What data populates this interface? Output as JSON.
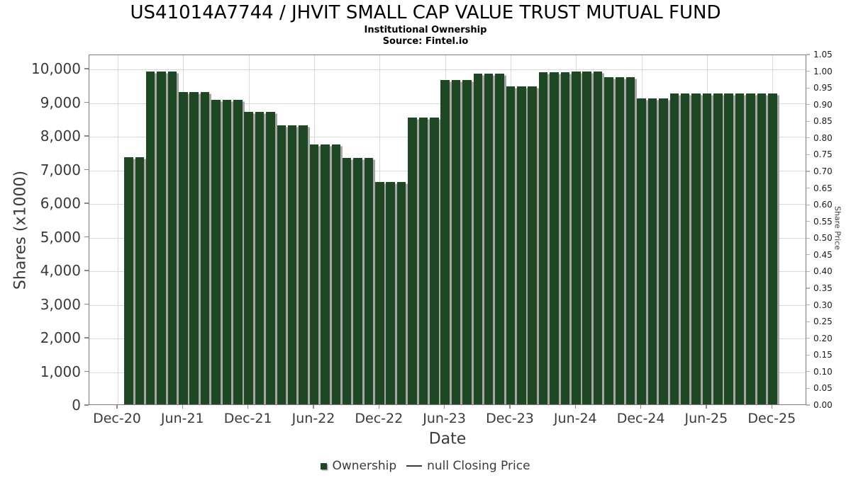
{
  "header": {
    "title": "US41014A7744 / JHVIT SMALL CAP VALUE TRUST MUTUAL FUND",
    "subtitle": "Institutional Ownership",
    "source": "Source: Fintel.io"
  },
  "chart_data": {
    "type": "bar",
    "title": "US41014A7744 / JHVIT SMALL CAP VALUE TRUST MUTUAL FUND",
    "subtitle": "Institutional Ownership",
    "source": "Source: Fintel.io",
    "xlabel": "Date",
    "ylabel_left": "Shares (x1000)",
    "ylabel_right": "Share Price",
    "legend": {
      "ownership": "Ownership",
      "closing_price": "null Closing Price"
    },
    "bar_color": "#1e4723",
    "bar_shadow_color": "#a6a6a6",
    "grid": true,
    "x_start": "Jan-21",
    "x_interval_months": 1,
    "x_tick_labels": [
      "Dec-20",
      "Jun-21",
      "Dec-21",
      "Jun-22",
      "Dec-22",
      "Jun-23",
      "Dec-23",
      "Jun-24",
      "Dec-24",
      "Jun-25",
      "Dec-25"
    ],
    "y_left_ticks": [
      0,
      1000,
      2000,
      3000,
      4000,
      5000,
      6000,
      7000,
      8000,
      9000,
      10000
    ],
    "y_left_lim": [
      0,
      10420
    ],
    "y_right_ticks": [
      0,
      0.05,
      0.1,
      0.15,
      0.2,
      0.25,
      0.3,
      0.35,
      0.4,
      0.45,
      0.5,
      0.55,
      0.6,
      0.65,
      0.7,
      0.75,
      0.8,
      0.85,
      0.9,
      0.95,
      1.0,
      1.05
    ],
    "y_right_lim": [
      0,
      1.05
    ],
    "values_x1000": [
      7350,
      7350,
      9900,
      9900,
      9900,
      9290,
      9290,
      9290,
      9060,
      9060,
      9060,
      8690,
      8690,
      8690,
      8300,
      8300,
      8300,
      7720,
      7720,
      7720,
      7330,
      7330,
      7330,
      6620,
      6620,
      6620,
      8520,
      8520,
      8520,
      9650,
      9650,
      9650,
      9830,
      9830,
      9830,
      9460,
      9460,
      9460,
      9880,
      9880,
      9880,
      9890,
      9890,
      9890,
      9720,
      9720,
      9720,
      9090,
      9090,
      9090,
      9250,
      9250,
      9250,
      9250,
      9250,
      9250,
      9250,
      9250,
      9250,
      9250
    ]
  }
}
